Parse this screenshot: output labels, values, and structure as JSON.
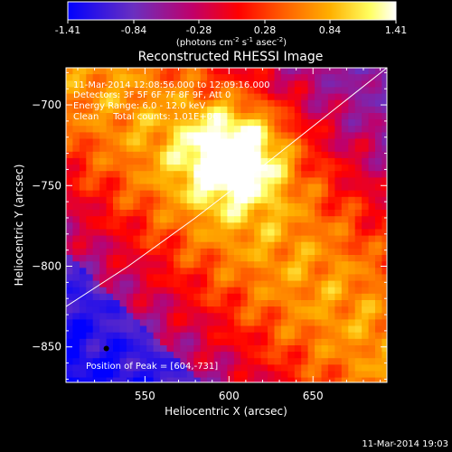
{
  "colorbar": {
    "ticks": [
      "-1.41",
      "-0.84",
      "-0.28",
      "0.28",
      "0.84",
      "1.41"
    ],
    "unit_text": "(photons cm",
    "unit_exp1": "-2",
    "unit_mid": " s",
    "unit_exp2": "-1",
    "unit_end": " asec",
    "unit_exp3": "-2",
    "unit_close": ")",
    "range": [
      -1.41,
      1.41
    ]
  },
  "image_annotation": {
    "time_range": "11-Mar-2014 12:08:56.000 to 12:09:16.000",
    "detectors": "Detectors: 3F 5F 6F 7F 8F 9F, Att 0",
    "energy": "Energy Range: 6.0 - 12.0 keV",
    "clean": "Clean     Total counts: 1.01E+06",
    "peak": "Position of Peak = [604,-731]"
  },
  "footer": {
    "timestamp": "11-Mar-2014 19:03"
  },
  "chart_data": {
    "type": "heatmap",
    "title": "Reconstructed RHESSI Image",
    "xlabel": "Heliocentric X (arcsec)",
    "ylabel": "Heliocentric Y (arcsec)",
    "xlim": [
      503,
      694
    ],
    "ylim": [
      -872,
      -677
    ],
    "xticks": [
      550,
      600,
      650
    ],
    "yticks": [
      -700,
      -750,
      -800,
      -850
    ],
    "xtick_labels": [
      "550",
      "600",
      "650"
    ],
    "ytick_labels": [
      "−700",
      "−750",
      "−800",
      "−850"
    ],
    "peak": [
      604,
      -731
    ],
    "limb_curve": [
      [
        503,
        -825
      ],
      [
        540,
        -800
      ],
      [
        580,
        -770
      ],
      [
        620,
        -738
      ],
      [
        660,
        -705
      ],
      [
        694,
        -677
      ]
    ],
    "marker": [
      527,
      -851
    ],
    "colors": [
      "#0000ff",
      "#7a2fb4",
      "#c4004f",
      "#ff0000",
      "#ff6a00",
      "#ffcc00",
      "#ffffa0",
      "#ffffff"
    ]
  }
}
